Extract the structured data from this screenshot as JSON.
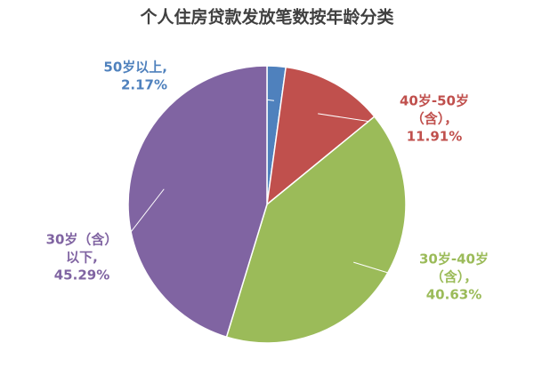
{
  "chart_data": {
    "type": "pie",
    "title": "个人住房贷款发放笔数按年龄分类",
    "categories": [
      [
        "50岁以上,"
      ],
      [
        "40岁-50岁",
        "（含），"
      ],
      [
        "30岁-40岁",
        "（含），"
      ],
      [
        "30岁（含）",
        "以下,"
      ]
    ],
    "values": [
      2.17,
      11.91,
      40.63,
      45.29
    ],
    "value_labels": [
      "2.17%",
      "11.91%",
      "40.63%",
      "45.29%"
    ],
    "colors": [
      "#4f81bd",
      "#c0504d",
      "#9bbb59",
      "#8064a2"
    ]
  }
}
